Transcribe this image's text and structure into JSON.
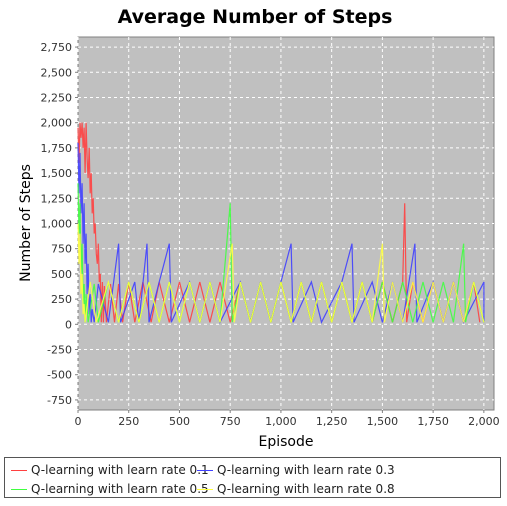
{
  "chart_data": {
    "type": "line",
    "title": "Average Number of Steps",
    "xlabel": "Episode",
    "ylabel": "Number of Steps",
    "xlim": [
      0,
      2050
    ],
    "ylim": [
      -850,
      2850
    ],
    "x_ticks": [
      0,
      250,
      500,
      750,
      1000,
      1250,
      1500,
      1750,
      2000
    ],
    "x_tick_labels": [
      "0",
      "250",
      "500",
      "750",
      "1,000",
      "1,250",
      "1,500",
      "1,750",
      "2,000"
    ],
    "y_ticks": [
      -750,
      -500,
      -250,
      0,
      250,
      500,
      750,
      1000,
      1250,
      1500,
      1750,
      2000,
      2250,
      2500,
      2750
    ],
    "y_tick_labels": [
      "-750",
      "-500",
      "-250",
      "0",
      "250",
      "500",
      "750",
      "1,000",
      "1,250",
      "1,500",
      "1,750",
      "2,000",
      "2,250",
      "2,500",
      "2,750"
    ],
    "grid": true,
    "legend_position": "bottom",
    "series": [
      {
        "name": "Q-learning with learn rate 0.1",
        "color": "#ff4040",
        "points": [
          [
            0,
            1950
          ],
          [
            5,
            1600
          ],
          [
            10,
            2000
          ],
          [
            15,
            1850
          ],
          [
            20,
            2000
          ],
          [
            25,
            1750
          ],
          [
            30,
            1950
          ],
          [
            35,
            1500
          ],
          [
            40,
            2000
          ],
          [
            45,
            1650
          ],
          [
            50,
            1450
          ],
          [
            55,
            1750
          ],
          [
            60,
            1300
          ],
          [
            65,
            1500
          ],
          [
            70,
            1100
          ],
          [
            75,
            1250
          ],
          [
            80,
            900
          ],
          [
            85,
            1000
          ],
          [
            90,
            700
          ],
          [
            95,
            600
          ],
          [
            100,
            800
          ],
          [
            105,
            420
          ],
          [
            110,
            500
          ],
          [
            115,
            20
          ],
          [
            120,
            420
          ],
          [
            125,
            20
          ],
          [
            130,
            380
          ],
          [
            140,
            20
          ],
          [
            160,
            400
          ],
          [
            180,
            20
          ],
          [
            200,
            400
          ],
          [
            220,
            20
          ],
          [
            250,
            420
          ],
          [
            280,
            20
          ],
          [
            320,
            420
          ],
          [
            360,
            20
          ],
          [
            400,
            420
          ],
          [
            450,
            20
          ],
          [
            500,
            420
          ],
          [
            550,
            20
          ],
          [
            600,
            420
          ],
          [
            650,
            20
          ],
          [
            700,
            420
          ],
          [
            750,
            20
          ],
          [
            800,
            420
          ],
          [
            850,
            20
          ],
          [
            900,
            420
          ],
          [
            950,
            20
          ],
          [
            1000,
            420
          ],
          [
            1050,
            20
          ],
          [
            1100,
            420
          ],
          [
            1150,
            20
          ],
          [
            1200,
            420
          ],
          [
            1250,
            20
          ],
          [
            1300,
            420
          ],
          [
            1350,
            20
          ],
          [
            1400,
            420
          ],
          [
            1450,
            20
          ],
          [
            1500,
            420
          ],
          [
            1550,
            20
          ],
          [
            1600,
            420
          ],
          [
            1610,
            1200
          ],
          [
            1620,
            20
          ],
          [
            1650,
            420
          ],
          [
            1700,
            20
          ],
          [
            1750,
            420
          ],
          [
            1800,
            20
          ],
          [
            1850,
            420
          ],
          [
            1900,
            20
          ],
          [
            1950,
            420
          ],
          [
            1980,
            20
          ]
        ]
      },
      {
        "name": "Q-learning with learn rate 0.3",
        "color": "#4040ff",
        "points": [
          [
            0,
            1800
          ],
          [
            5,
            1300
          ],
          [
            10,
            1700
          ],
          [
            15,
            1100
          ],
          [
            20,
            1400
          ],
          [
            25,
            800
          ],
          [
            30,
            1200
          ],
          [
            35,
            600
          ],
          [
            40,
            900
          ],
          [
            45,
            300
          ],
          [
            50,
            600
          ],
          [
            55,
            100
          ],
          [
            60,
            300
          ],
          [
            65,
            20
          ],
          [
            70,
            150
          ],
          [
            80,
            20
          ],
          [
            100,
            400
          ],
          [
            150,
            20
          ],
          [
            200,
            800
          ],
          [
            210,
            20
          ],
          [
            280,
            420
          ],
          [
            300,
            20
          ],
          [
            340,
            800
          ],
          [
            350,
            20
          ],
          [
            400,
            420
          ],
          [
            450,
            800
          ],
          [
            460,
            20
          ],
          [
            550,
            420
          ],
          [
            600,
            20
          ],
          [
            650,
            420
          ],
          [
            700,
            20
          ],
          [
            800,
            420
          ],
          [
            850,
            20
          ],
          [
            900,
            420
          ],
          [
            950,
            20
          ],
          [
            1000,
            420
          ],
          [
            1050,
            800
          ],
          [
            1060,
            20
          ],
          [
            1150,
            420
          ],
          [
            1200,
            20
          ],
          [
            1300,
            420
          ],
          [
            1350,
            800
          ],
          [
            1360,
            20
          ],
          [
            1450,
            420
          ],
          [
            1500,
            20
          ],
          [
            1550,
            420
          ],
          [
            1600,
            20
          ],
          [
            1660,
            800
          ],
          [
            1670,
            20
          ],
          [
            1750,
            420
          ],
          [
            1800,
            20
          ],
          [
            1850,
            420
          ],
          [
            1900,
            20
          ],
          [
            2000,
            420
          ],
          [
            2000,
            20
          ]
        ]
      },
      {
        "name": "Q-learning with learn rate 0.5",
        "color": "#40ff40",
        "points": [
          [
            0,
            1400
          ],
          [
            5,
            900
          ],
          [
            10,
            1200
          ],
          [
            15,
            500
          ],
          [
            20,
            800
          ],
          [
            25,
            200
          ],
          [
            30,
            400
          ],
          [
            35,
            20
          ],
          [
            40,
            300
          ],
          [
            50,
            20
          ],
          [
            80,
            400
          ],
          [
            100,
            20
          ],
          [
            150,
            420
          ],
          [
            200,
            20
          ],
          [
            250,
            420
          ],
          [
            300,
            20
          ],
          [
            350,
            420
          ],
          [
            400,
            20
          ],
          [
            450,
            420
          ],
          [
            500,
            20
          ],
          [
            550,
            420
          ],
          [
            600,
            20
          ],
          [
            650,
            420
          ],
          [
            700,
            20
          ],
          [
            750,
            1200
          ],
          [
            760,
            20
          ],
          [
            800,
            420
          ],
          [
            850,
            20
          ],
          [
            900,
            420
          ],
          [
            950,
            20
          ],
          [
            1000,
            420
          ],
          [
            1050,
            20
          ],
          [
            1100,
            420
          ],
          [
            1150,
            20
          ],
          [
            1200,
            420
          ],
          [
            1250,
            20
          ],
          [
            1300,
            420
          ],
          [
            1350,
            20
          ],
          [
            1400,
            420
          ],
          [
            1450,
            20
          ],
          [
            1500,
            420
          ],
          [
            1550,
            20
          ],
          [
            1600,
            420
          ],
          [
            1650,
            20
          ],
          [
            1700,
            420
          ],
          [
            1750,
            20
          ],
          [
            1800,
            420
          ],
          [
            1850,
            20
          ],
          [
            1900,
            800
          ],
          [
            1910,
            20
          ],
          [
            1950,
            420
          ],
          [
            2000,
            20
          ]
        ]
      },
      {
        "name": "Q-learning with learn rate 0.8",
        "color": "#ffff40",
        "points": [
          [
            0,
            1000
          ],
          [
            5,
            600
          ],
          [
            10,
            900
          ],
          [
            15,
            300
          ],
          [
            20,
            500
          ],
          [
            25,
            100
          ],
          [
            30,
            200
          ],
          [
            35,
            20
          ],
          [
            60,
            420
          ],
          [
            90,
            20
          ],
          [
            150,
            420
          ],
          [
            200,
            20
          ],
          [
            250,
            420
          ],
          [
            300,
            20
          ],
          [
            350,
            420
          ],
          [
            400,
            20
          ],
          [
            450,
            420
          ],
          [
            500,
            20
          ],
          [
            550,
            420
          ],
          [
            600,
            20
          ],
          [
            650,
            420
          ],
          [
            700,
            20
          ],
          [
            760,
            800
          ],
          [
            770,
            20
          ],
          [
            800,
            420
          ],
          [
            850,
            20
          ],
          [
            900,
            420
          ],
          [
            950,
            20
          ],
          [
            1000,
            420
          ],
          [
            1050,
            20
          ],
          [
            1100,
            420
          ],
          [
            1150,
            20
          ],
          [
            1200,
            420
          ],
          [
            1250,
            20
          ],
          [
            1300,
            420
          ],
          [
            1350,
            20
          ],
          [
            1400,
            420
          ],
          [
            1450,
            20
          ],
          [
            1500,
            800
          ],
          [
            1510,
            20
          ],
          [
            1550,
            420
          ],
          [
            1600,
            20
          ],
          [
            1650,
            420
          ],
          [
            1700,
            20
          ],
          [
            1750,
            420
          ],
          [
            1800,
            20
          ],
          [
            1850,
            420
          ],
          [
            1900,
            20
          ],
          [
            1950,
            420
          ],
          [
            2000,
            20
          ]
        ]
      }
    ]
  }
}
